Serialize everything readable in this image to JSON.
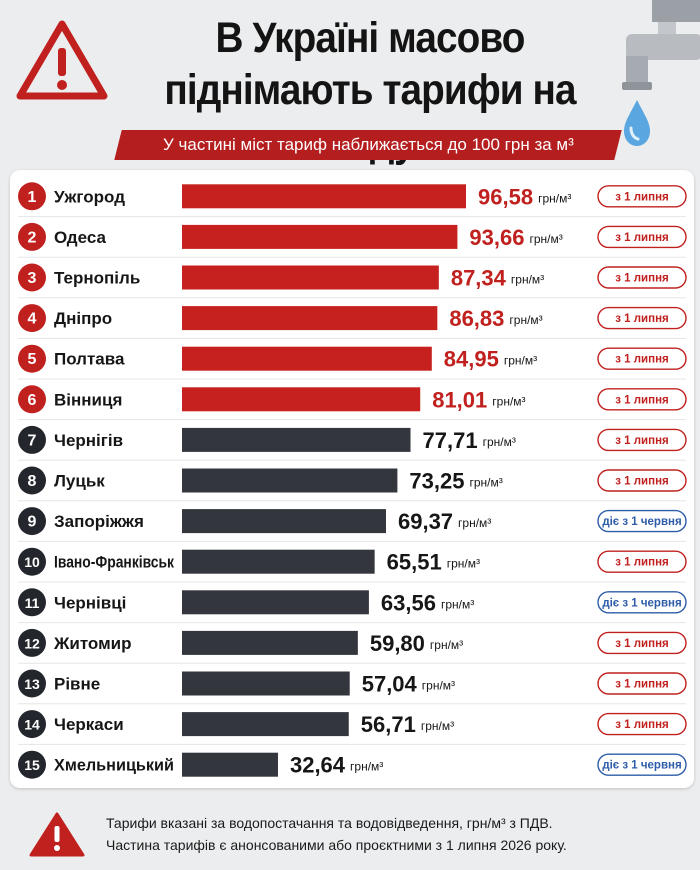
{
  "header": {
    "title_line1": "В Україні масово",
    "title_line2": "піднімають тарифи на воду",
    "subtitle": "У частині міст тариф наближається до 100 грн за м³"
  },
  "colors": {
    "accent_red": "#c0201e",
    "bar_red": "#c7211f",
    "bar_dark": "#33363d",
    "badge_red": "#c0201e",
    "badge_blue": "#2d5ca8"
  },
  "chart_data": {
    "type": "bar",
    "orientation": "horizontal",
    "unit": "грн/м³",
    "categories": [
      "Ужгород",
      "Одеса",
      "Тернопіль",
      "Дніпро",
      "Полтава",
      "Вінниця",
      "Чернігів",
      "Луцьк",
      "Запоріжжя",
      "Івано-Франківськ",
      "Чернівці",
      "Житомир",
      "Рівне",
      "Черкаси",
      "Хмельницький"
    ],
    "ranks": [
      "1",
      "2",
      "3",
      "4",
      "5",
      "6",
      "7",
      "8",
      "9",
      "10",
      "11",
      "12",
      "13",
      "14",
      "15"
    ],
    "values": [
      96.58,
      93.66,
      87.34,
      86.83,
      84.95,
      81.01,
      77.71,
      73.25,
      69.37,
      65.51,
      63.56,
      59.8,
      57.04,
      56.71,
      32.64
    ],
    "value_labels": [
      "96,58",
      "93,66",
      "87,34",
      "86,83",
      "84,95",
      "81,01",
      "77,71",
      "73,25",
      "69,37",
      "65,51",
      "63,56",
      "59,80",
      "57,04",
      "56,71",
      "32,64"
    ],
    "bar_colors": [
      "red",
      "red",
      "red",
      "red",
      "red",
      "red",
      "dark",
      "dark",
      "dark",
      "dark",
      "dark",
      "dark",
      "dark",
      "dark",
      "dark"
    ],
    "badges": [
      "з 1 липня",
      "з 1 липня",
      "з 1 липня",
      "з 1 липня",
      "з 1 липня",
      "з 1 липня",
      "з 1 липня",
      "з 1 липня",
      "діє з 1 червня",
      "з 1 липня",
      "діє з 1 червня",
      "з 1 липня",
      "з 1 липня",
      "з 1 липня",
      "діє з 1 червня"
    ],
    "badge_colors": [
      "red",
      "red",
      "red",
      "red",
      "red",
      "red",
      "red",
      "red",
      "blue",
      "red",
      "blue",
      "red",
      "red",
      "red",
      "blue"
    ],
    "grid": false,
    "legend": "none"
  },
  "footer": {
    "line1": "Тарифи вказані за водопостачання та водовідведення, грн/м³ з ПДВ.",
    "line2": "Частина тарифів є анонсованими або проєктними з 1 липня 2026 року."
  }
}
